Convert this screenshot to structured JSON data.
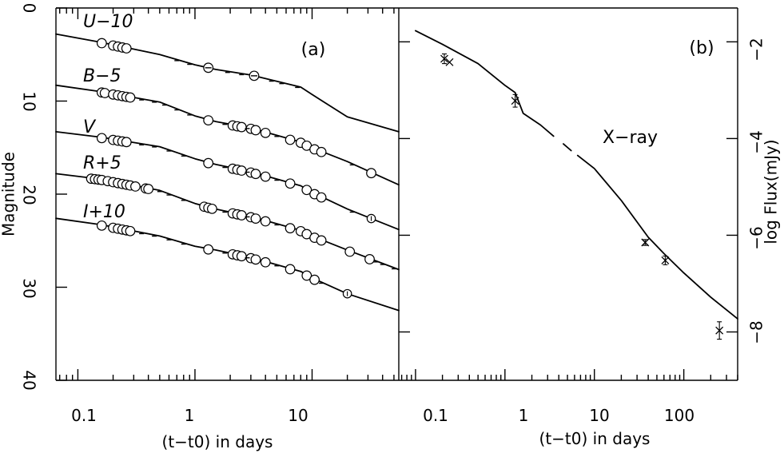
{
  "chart_data": [
    {
      "panel": "a",
      "type": "scatter",
      "panel_label": "(a)",
      "xlabel": "(t−t0) in days",
      "ylabel": "Magnitude",
      "xscale": "log",
      "xlim": [
        0.065,
        55
      ],
      "ylim": [
        40,
        0
      ],
      "x_ticks": [
        {
          "value": 0.1,
          "label": "0.1"
        },
        {
          "value": 1,
          "label": "1"
        },
        {
          "value": 10,
          "label": "10"
        }
      ],
      "y_ticks": [
        {
          "value": 0,
          "label": "0"
        },
        {
          "value": 10,
          "label": "10"
        },
        {
          "value": 20,
          "label": "20"
        },
        {
          "value": 30,
          "label": "30"
        },
        {
          "value": 40,
          "label": "40"
        }
      ],
      "series": [
        {
          "name": "U−10",
          "curve": [
            [
              0.065,
              2.8
            ],
            [
              0.16,
              3.7
            ],
            [
              0.5,
              5.0
            ],
            [
              1,
              6.1
            ],
            [
              1.5,
              6.6
            ],
            [
              3,
              7.2
            ],
            [
              8,
              8.5
            ],
            [
              10,
              9.3
            ],
            [
              20,
              11.7
            ],
            [
              55,
              13.3
            ]
          ],
          "circle_x": [
            0.16,
            0.2,
            0.22,
            0.24,
            0.26
          ],
          "dash_x": [
            0.7,
            0.9,
            1.3,
            1.9,
            2.5,
            3.2,
            4.5,
            5.5,
            7.5
          ],
          "marker_x": [
            1.3,
            3.2
          ],
          "errbar_x": []
        },
        {
          "name": "B−5",
          "curve": [
            [
              0.065,
              8.3
            ],
            [
              0.16,
              9.0
            ],
            [
              0.5,
              10.1
            ],
            [
              1,
              11.6
            ],
            [
              1.5,
              12.2
            ],
            [
              3,
              12.9
            ],
            [
              8,
              14.4
            ],
            [
              10,
              15.0
            ],
            [
              20,
              16.5
            ],
            [
              55,
              19.0
            ]
          ],
          "circle_x": [
            0.16,
            0.17,
            0.2,
            0.22,
            0.24,
            0.26,
            0.28,
            1.3,
            2.1,
            2.3,
            2.5,
            3.0,
            3.3,
            4.0,
            6.5,
            8.0,
            9.0,
            10.5,
            12.0,
            32
          ],
          "dash_x": [
            0.35,
            0.45,
            0.55,
            0.7,
            0.9,
            1.8,
            2.8,
            5.0,
            22
          ],
          "marker_x": [],
          "errbar_x": []
        },
        {
          "name": "V",
          "curve": [
            [
              0.065,
              13.3
            ],
            [
              0.16,
              13.9
            ],
            [
              0.5,
              14.9
            ],
            [
              1,
              16.2
            ],
            [
              1.5,
              16.8
            ],
            [
              3,
              17.6
            ],
            [
              8,
              19.1
            ],
            [
              10,
              19.8
            ],
            [
              20,
              21.6
            ],
            [
              55,
              23.8
            ]
          ],
          "circle_x": [
            0.16,
            0.2,
            0.22,
            0.24,
            0.26,
            1.3,
            2.1,
            2.3,
            2.5,
            3.0,
            3.3,
            4.0,
            6.5,
            9.0,
            10.5,
            12.0
          ],
          "dash_x": [
            0.35,
            0.45,
            0.6,
            0.8,
            1.8,
            2.8,
            5.0,
            22
          ],
          "marker_x": [],
          "errbar_x": [
            32
          ]
        },
        {
          "name": "R+5",
          "curve": [
            [
              0.065,
              17.8
            ],
            [
              0.16,
              18.4
            ],
            [
              0.5,
              19.6
            ],
            [
              1,
              21.0
            ],
            [
              1.5,
              21.6
            ],
            [
              3,
              22.4
            ],
            [
              8,
              23.9
            ],
            [
              10,
              24.5
            ],
            [
              20,
              26.0
            ],
            [
              55,
              28.1
            ]
          ],
          "circle_x": [
            0.13,
            0.14,
            0.15,
            0.16,
            0.18,
            0.2,
            0.22,
            0.24,
            0.26,
            0.28,
            0.31,
            0.38,
            0.4,
            1.2,
            1.3,
            1.4,
            2.1,
            2.3,
            2.5,
            3.0,
            3.3,
            4.0,
            6.5,
            8.0,
            9.0,
            10.5,
            12.0,
            21,
            31
          ],
          "dash_x": [
            0.5,
            0.6,
            0.8,
            1.8,
            2.8,
            5.0,
            35,
            40,
            50
          ],
          "marker_x": [],
          "errbar_x": []
        },
        {
          "name": "I+10",
          "curve": [
            [
              0.065,
              22.6
            ],
            [
              0.16,
              23.3
            ],
            [
              0.5,
              24.5
            ],
            [
              1,
              25.6
            ],
            [
              1.5,
              26.0
            ],
            [
              3,
              26.8
            ],
            [
              8,
              28.3
            ],
            [
              10,
              29.0
            ],
            [
              20,
              30.7
            ],
            [
              55,
              32.5
            ]
          ],
          "circle_x": [
            0.16,
            0.2,
            0.22,
            0.24,
            0.26,
            0.28,
            1.3,
            2.1,
            2.3,
            2.5,
            3.0,
            3.3,
            4.0,
            6.5,
            9.0,
            10.5
          ],
          "dash_x": [
            0.35,
            0.45,
            0.6,
            0.8,
            1.8,
            2.8,
            5.0,
            12.0
          ],
          "marker_x": [],
          "errbar_x": [
            20
          ]
        }
      ]
    },
    {
      "panel": "b",
      "type": "line",
      "panel_label": "(b)",
      "annotation": "X−ray",
      "xlabel": "(t−t0) in days",
      "ylabel": "log Flux(mJy)",
      "xscale": "log",
      "xlim": [
        0.065,
        400
      ],
      "ylim": [
        -9,
        -1.3
      ],
      "x_ticks": [
        {
          "value": 0.1,
          "label": "0.1"
        },
        {
          "value": 1,
          "label": "1"
        },
        {
          "value": 10,
          "label": "10"
        },
        {
          "value": 100,
          "label": "100"
        }
      ],
      "y_ticks": [
        {
          "value": -2,
          "label": "−2"
        },
        {
          "value": -4,
          "label": "−4"
        },
        {
          "value": -6,
          "label": "−6"
        },
        {
          "value": -8,
          "label": "−8"
        }
      ],
      "left_ticks": [
        2,
        4,
        6,
        8
      ],
      "model_segments": [
        [
          [
            0.1,
            -1.77
          ],
          [
            0.2,
            -2.05
          ],
          [
            0.5,
            -2.45
          ],
          [
            1.0,
            -2.9
          ],
          [
            1.3,
            -3.05
          ],
          [
            1.6,
            -3.48
          ],
          [
            2.5,
            -3.72
          ],
          [
            3.5,
            -3.95
          ]
        ],
        [
          [
            4.5,
            -4.11
          ],
          [
            5.5,
            -4.25
          ]
        ],
        [
          [
            6.5,
            -4.35
          ],
          [
            10,
            -4.62
          ],
          [
            20,
            -5.28
          ],
          [
            40,
            -6.04
          ],
          [
            60,
            -6.38
          ],
          [
            100,
            -6.78
          ],
          [
            200,
            -7.28
          ],
          [
            400,
            -7.73
          ]
        ]
      ],
      "points": [
        {
          "x": 0.21,
          "y": -2.35,
          "err": 0.1
        },
        {
          "x": 0.24,
          "y": -2.42,
          "err": 0
        },
        {
          "x": 1.3,
          "y": -3.22,
          "err": 0.13
        },
        {
          "x": 37,
          "y": -6.15,
          "err": 0.06
        },
        {
          "x": 62,
          "y": -6.52,
          "err": 0.09
        },
        {
          "x": 250,
          "y": -7.97,
          "err": 0.18
        }
      ]
    }
  ]
}
